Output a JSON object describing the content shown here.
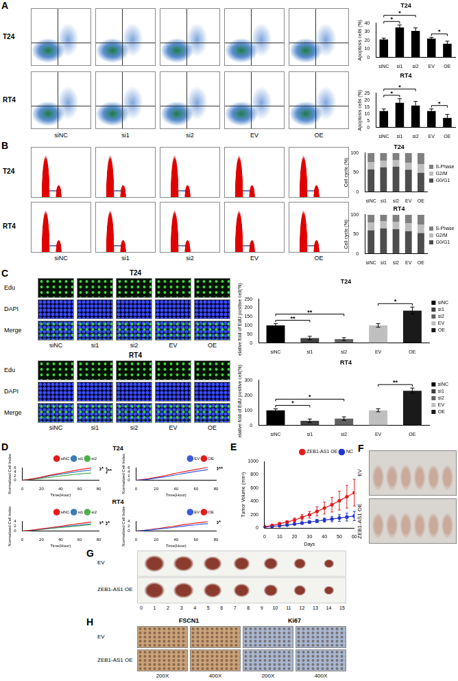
{
  "chart_data": [
    {
      "panel": "A",
      "type": "bar",
      "title": "T24",
      "y_label": "Apoptosis cells (%)",
      "categories": [
        "siNC",
        "si1",
        "si2",
        "EV",
        "OE"
      ],
      "values": [
        21,
        35,
        31,
        22,
        16
      ],
      "errors": [
        1.5,
        3,
        3.5,
        1.5,
        3
      ],
      "color": "#000000",
      "ylim": [
        0,
        40
      ],
      "yticks": [
        0,
        10,
        20,
        30,
        40
      ],
      "grid": false,
      "annotations": [
        {
          "between": [
            "siNC",
            "si1"
          ],
          "label": "*"
        },
        {
          "between": [
            "siNC",
            "si2"
          ],
          "label": "*"
        },
        {
          "between": [
            "EV",
            "OE"
          ],
          "label": "*"
        }
      ]
    },
    {
      "panel": "A",
      "type": "bar",
      "title": "RT4",
      "y_label": "Apoptosis cells (%)",
      "categories": [
        "siNC",
        "si1",
        "si2",
        "EV",
        "OE"
      ],
      "values": [
        12,
        18,
        16,
        12,
        7
      ],
      "errors": [
        1.5,
        3,
        3,
        1.5,
        2.5
      ],
      "color": "#000000",
      "ylim": [
        0,
        25
      ],
      "yticks": [
        0,
        5,
        10,
        15,
        20,
        25
      ],
      "grid": false,
      "annotations": [
        {
          "between": [
            "siNC",
            "si1"
          ],
          "label": "*"
        },
        {
          "between": [
            "siNC",
            "si2"
          ],
          "label": "*"
        },
        {
          "between": [
            "EV",
            "OE"
          ],
          "label": "*"
        }
      ]
    },
    {
      "panel": "B",
      "type": "bar",
      "stacked": true,
      "title": "T24",
      "y_label": "Cell cycle (%)",
      "categories": [
        "siNC",
        "si1",
        "si2",
        "EV",
        "OE"
      ],
      "series": [
        {
          "name": "G0/G1",
          "color": "#4d4d4d",
          "values": [
            58,
            63,
            65,
            57,
            49
          ]
        },
        {
          "name": "G2/M",
          "color": "#bdbdbd",
          "values": [
            18,
            17,
            16,
            18,
            22
          ]
        },
        {
          "name": "S-Phase",
          "color": "#7f7f7f",
          "values": [
            24,
            20,
            19,
            25,
            29
          ]
        }
      ],
      "ylim": [
        0,
        100
      ],
      "yticks": [
        0,
        50,
        100
      ],
      "grid": false,
      "legend": "right"
    },
    {
      "panel": "B",
      "type": "bar",
      "stacked": true,
      "title": "RT4",
      "y_label": "Cell cycle (%)",
      "categories": [
        "siNC",
        "si1",
        "si2",
        "EV",
        "OE"
      ],
      "series": [
        {
          "name": "G0/G1",
          "color": "#4d4d4d",
          "values": [
            60,
            65,
            63,
            58,
            53
          ]
        },
        {
          "name": "G2/M",
          "color": "#bdbdbd",
          "values": [
            20,
            18,
            19,
            20,
            22
          ]
        },
        {
          "name": "S-Phase",
          "color": "#7f7f7f",
          "values": [
            20,
            17,
            18,
            22,
            25
          ]
        }
      ],
      "ylim": [
        0,
        100
      ],
      "yticks": [
        0,
        50,
        100
      ],
      "grid": false,
      "legend": "right"
    },
    {
      "panel": "C",
      "type": "bar",
      "title": "T24",
      "y_label": "Relative fold of EdU positive cell(%)",
      "categories": [
        "siNC",
        "si1",
        "si2",
        "EV",
        "OE"
      ],
      "values": [
        100,
        28,
        22,
        100,
        185
      ],
      "errors": [
        10,
        10,
        8,
        10,
        20
      ],
      "colors": [
        "#000000",
        "#404040",
        "#606060",
        "#bfbfbf",
        "#1a1a1a"
      ],
      "ylim": [
        0,
        250
      ],
      "yticks": [
        0,
        50,
        100,
        150,
        200,
        250
      ],
      "grid": false,
      "legend": "right",
      "annotations": [
        {
          "between": [
            "siNC",
            "si1"
          ],
          "label": "**"
        },
        {
          "between": [
            "siNC",
            "si2"
          ],
          "label": "**"
        },
        {
          "between": [
            "EV",
            "OE"
          ],
          "label": "*"
        }
      ]
    },
    {
      "panel": "C",
      "type": "bar",
      "title": "RT4",
      "y_label": "Relative fold of EdU positive cell(%)",
      "categories": [
        "siNC",
        "si1",
        "si2",
        "EV",
        "OE"
      ],
      "values": [
        100,
        30,
        45,
        100,
        230
      ],
      "errors": [
        10,
        12,
        12,
        10,
        18
      ],
      "colors": [
        "#000000",
        "#404040",
        "#606060",
        "#bfbfbf",
        "#1a1a1a"
      ],
      "ylim": [
        0,
        300
      ],
      "yticks": [
        0,
        100,
        200,
        300
      ],
      "grid": false,
      "legend": "right",
      "annotations": [
        {
          "between": [
            "siNC",
            "si1"
          ],
          "label": "*"
        },
        {
          "between": [
            "siNC",
            "si2"
          ],
          "label": "*"
        },
        {
          "between": [
            "EV",
            "OE"
          ],
          "label": "**"
        }
      ]
    },
    {
      "panel": "D",
      "type": "line",
      "x_label": "Time(Hour)",
      "y_label": "Normalized Cell Index",
      "x": [
        0,
        6,
        12,
        18,
        24,
        30,
        36,
        42,
        48,
        54,
        60,
        66,
        72
      ],
      "series": [
        {
          "name": "siNC",
          "color": "#e41a1c",
          "values": [
            0,
            0.3,
            0.8,
            1.3,
            1.9,
            2.5,
            3.0,
            3.5,
            4.0,
            4.5,
            5.0,
            5.4,
            5.8
          ]
        },
        {
          "name": "si1",
          "color": "#377eb8",
          "values": [
            0,
            0.3,
            0.7,
            1.1,
            1.6,
            2.1,
            2.6,
            3.0,
            3.4,
            3.8,
            4.2,
            4.5,
            4.8
          ]
        },
        {
          "name": "si2",
          "color": "#4daf4a",
          "values": [
            0,
            0.2,
            0.5,
            0.8,
            1.1,
            1.4,
            1.8,
            2.1,
            2.4,
            2.7,
            3.0,
            3.2,
            3.4
          ]
        }
      ],
      "xlim": [
        0,
        80
      ],
      "xticks": [
        0,
        20,
        40,
        60,
        80
      ],
      "ylim": [
        0,
        6
      ],
      "yticks": [
        0,
        2,
        4,
        6
      ],
      "grid": false,
      "legend": "top",
      "annotations": [
        {
          "between": [
            "siNC",
            "si1"
          ],
          "label": "*"
        },
        {
          "between": [
            "siNC",
            "si2"
          ],
          "label": "**"
        }
      ]
    },
    {
      "panel": "D",
      "type": "line",
      "x_label": "Time(Hour)",
      "y_label": "Normalized Cell Index",
      "x": [
        0,
        6,
        12,
        18,
        24,
        30,
        36,
        42,
        48,
        54,
        60,
        66,
        72
      ],
      "series": [
        {
          "name": "EV",
          "color": "#3b5bdb",
          "values": [
            0,
            0.2,
            0.5,
            0.9,
            1.3,
            1.7,
            2.2,
            2.7,
            3.2,
            3.7,
            4.2,
            4.6,
            5.0
          ]
        },
        {
          "name": "OE",
          "color": "#e41a1c",
          "values": [
            0,
            0.3,
            0.7,
            1.2,
            1.7,
            2.3,
            2.9,
            3.5,
            4.0,
            4.6,
            5.1,
            5.6,
            6.0
          ]
        }
      ],
      "xlim": [
        0,
        80
      ],
      "xticks": [
        0,
        20,
        40,
        60,
        80
      ],
      "ylim": [
        0,
        6
      ],
      "yticks": [
        0,
        2,
        4,
        6
      ],
      "grid": false,
      "legend": "top",
      "annotations": [
        {
          "between": [
            "EV",
            "OE"
          ],
          "label": "**"
        }
      ]
    },
    {
      "panel": "D",
      "type": "line",
      "x_label": "Time(Hour)",
      "y_label": "Normalized Cell Index",
      "x": [
        0,
        6,
        12,
        18,
        24,
        30,
        36,
        42,
        48,
        54,
        60,
        66,
        72
      ],
      "series": [
        {
          "name": "siNC",
          "color": "#e41a1c",
          "values": [
            0,
            0.2,
            0.5,
            0.8,
            1.1,
            1.4,
            1.7,
            2.0,
            2.4,
            2.7,
            3.0,
            3.3,
            3.6
          ]
        },
        {
          "name": "si1",
          "color": "#377eb8",
          "values": [
            0,
            0.2,
            0.4,
            0.7,
            0.9,
            1.2,
            1.4,
            1.7,
            1.9,
            2.2,
            2.4,
            2.7,
            2.9
          ]
        },
        {
          "name": "si2",
          "color": "#4daf4a",
          "values": [
            0,
            0.1,
            0.3,
            0.5,
            0.8,
            1.0,
            1.3,
            1.5,
            1.7,
            1.9,
            2.1,
            2.4,
            2.6
          ]
        }
      ],
      "xlim": [
        0,
        80
      ],
      "xticks": [
        0,
        20,
        40,
        60,
        80
      ],
      "ylim": [
        0,
        4
      ],
      "yticks": [
        0,
        2,
        4
      ],
      "grid": false,
      "legend": "top",
      "annotations": [
        {
          "between": [
            "siNC",
            "si1"
          ],
          "label": "*"
        },
        {
          "between": [
            "siNC",
            "si2"
          ],
          "label": "*"
        }
      ]
    },
    {
      "panel": "D",
      "type": "line",
      "x_label": "Time(Hour)",
      "y_label": "Normalized Cell Index",
      "x": [
        0,
        6,
        12,
        18,
        24,
        30,
        36,
        42,
        48,
        54,
        60,
        66,
        72
      ],
      "series": [
        {
          "name": "EV",
          "color": "#3b5bdb",
          "values": [
            0,
            0.2,
            0.4,
            0.6,
            0.9,
            1.1,
            1.4,
            1.7,
            2.0,
            2.3,
            2.5,
            2.8,
            3.0
          ]
        },
        {
          "name": "OE",
          "color": "#e41a1c",
          "values": [
            0,
            0.2,
            0.5,
            0.8,
            1.1,
            1.5,
            1.8,
            2.2,
            2.6,
            2.9,
            3.2,
            3.5,
            3.8
          ]
        }
      ],
      "xlim": [
        0,
        80
      ],
      "xticks": [
        0,
        20,
        40,
        60,
        80
      ],
      "ylim": [
        0,
        4
      ],
      "yticks": [
        0,
        2,
        4
      ],
      "grid": false,
      "legend": "top",
      "annotations": [
        {
          "between": [
            "EV",
            "OE"
          ],
          "label": "*"
        }
      ]
    },
    {
      "panel": "E",
      "type": "line",
      "marker": "circle",
      "x_label": "Days",
      "y_label": "Tumor Volume (mm³)",
      "x": [
        0,
        5,
        10,
        15,
        20,
        25,
        30,
        35,
        40,
        45,
        50,
        55,
        60
      ],
      "series": [
        {
          "name": "ZEB1-AS1 OE",
          "color": "#e41a1c",
          "values": [
            20,
            40,
            65,
            90,
            120,
            160,
            200,
            250,
            300,
            350,
            410,
            470,
            530
          ],
          "errors": [
            5,
            10,
            15,
            20,
            30,
            40,
            50,
            70,
            90,
            110,
            140,
            170,
            200
          ]
        },
        {
          "name": "NC",
          "color": "#2233cc",
          "values": [
            15,
            25,
            35,
            45,
            60,
            75,
            90,
            105,
            120,
            135,
            150,
            165,
            180
          ],
          "errors": [
            3,
            5,
            8,
            10,
            12,
            15,
            20,
            25,
            30,
            40,
            50,
            60,
            70
          ]
        }
      ],
      "xlim": [
        0,
        60
      ],
      "xticks": [
        0,
        10,
        20,
        30,
        40,
        50,
        60
      ],
      "ylim": [
        0,
        1000
      ],
      "yticks": [
        0,
        200,
        400,
        600,
        800,
        1000
      ],
      "grid": false,
      "legend": "top"
    }
  ],
  "figure": {
    "letters": [
      "A",
      "B",
      "C",
      "D",
      "E",
      "F",
      "G",
      "H"
    ],
    "A": {
      "rows": [
        "T24",
        "RT4"
      ],
      "columns": [
        "siNC",
        "si1",
        "si2",
        "EV",
        "OE"
      ]
    },
    "B": {
      "rows": [
        "T24",
        "RT4"
      ],
      "columns": [
        "siNC",
        "si1",
        "si2",
        "EV",
        "OE"
      ]
    },
    "C": {
      "groups": [
        {
          "title": "T24",
          "rows": [
            "Edu",
            "DAPI",
            "Merge"
          ]
        },
        {
          "title": "RT4",
          "rows": [
            "Edu",
            "DAPI",
            "Merge"
          ]
        }
      ],
      "columns": [
        "siNC",
        "si1",
        "si2",
        "EV",
        "OE"
      ]
    },
    "D": {
      "titles": [
        "T24",
        "RT4"
      ]
    },
    "F": {
      "rows": [
        "EV",
        "ZEB1-AS1 OE"
      ]
    },
    "G": {
      "rows": [
        "EV",
        "ZEB1-AS1 OE"
      ],
      "ruler": [
        0,
        1,
        2,
        3,
        4,
        5,
        6,
        7,
        8,
        9,
        10,
        11,
        12,
        13,
        14,
        15
      ]
    },
    "H": {
      "columns": [
        "FSCN1",
        "Ki67"
      ],
      "rows": [
        "EV",
        "ZEB1-AS1 OE"
      ],
      "magnifications": [
        "200X",
        "400X",
        "200X",
        "400X"
      ]
    }
  }
}
